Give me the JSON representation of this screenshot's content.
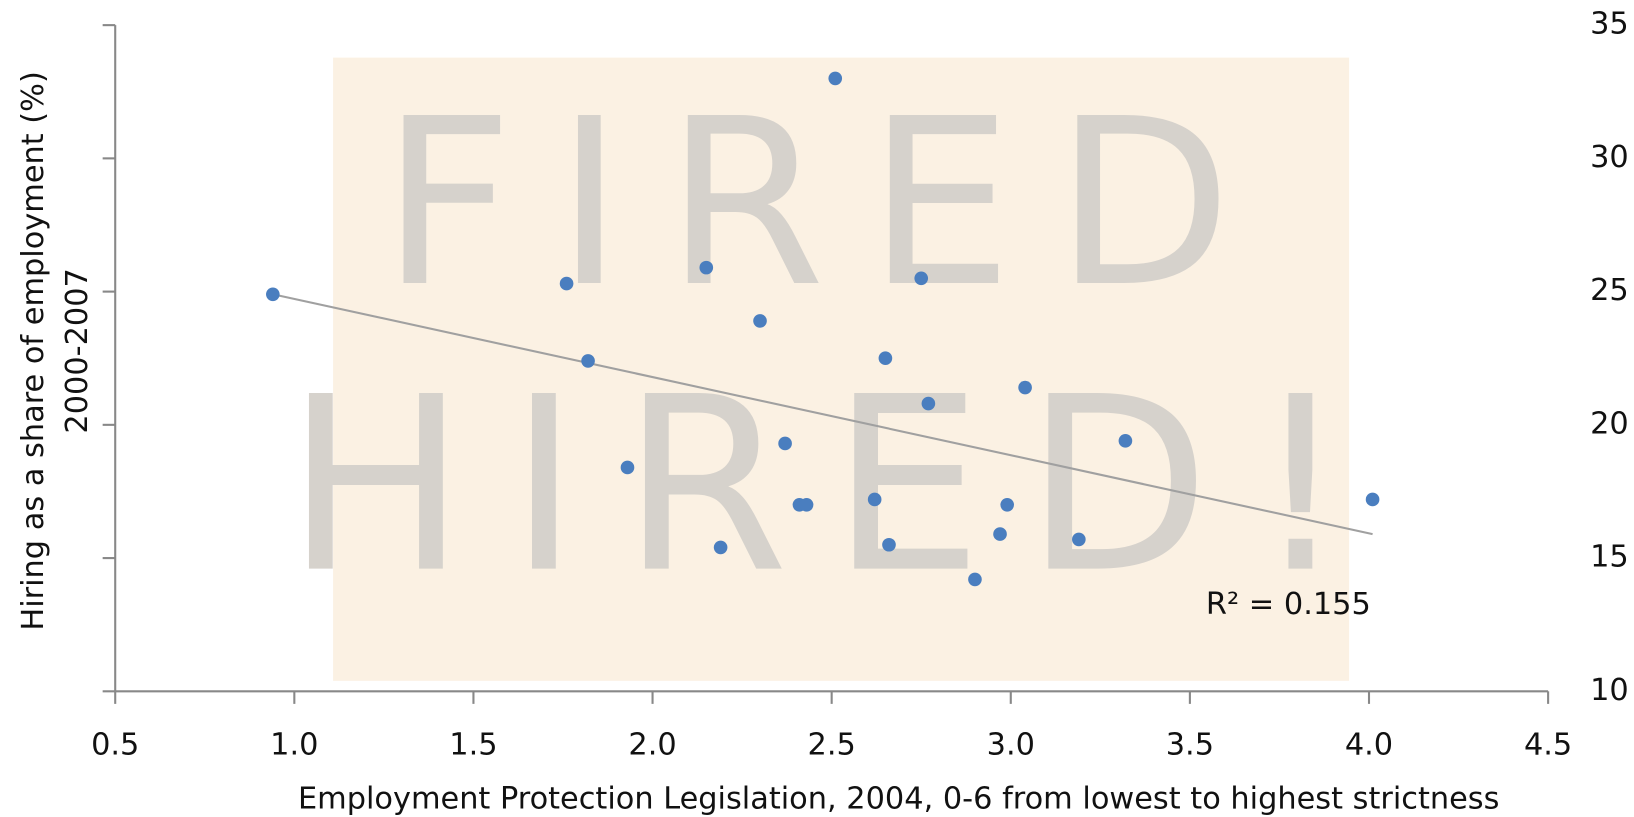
{
  "chart_data": {
    "type": "scatter",
    "x_label": "Employment Protection Legislation, 2004,  0-6 from lowest to highest strictness",
    "y_label": [
      "Hiring as a share of employment (%)",
      "2000-2007"
    ],
    "background_text": [
      "FIRED",
      "HIRED!"
    ],
    "xlim": [
      0.5,
      4.5
    ],
    "xticks": [
      0.5,
      {
        "value": 1,
        "label": "1.0"
      },
      1.5,
      {
        "value": 2,
        "label": "2.0"
      },
      2.5,
      {
        "value": 3,
        "label": "3.0"
      },
      3.5,
      {
        "value": 4,
        "label": "4.0"
      },
      4.5
    ],
    "ylim": [
      10,
      35
    ],
    "yticks": [
      10,
      15,
      20,
      25,
      30,
      35
    ],
    "series": [
      {
        "color": "#4a7ebf",
        "x": [
          0.94,
          1.76,
          1.82,
          1.93,
          2.15,
          2.19,
          2.3,
          2.37,
          2.41,
          2.43,
          2.51,
          2.62,
          2.65,
          2.66,
          2.75,
          2.77,
          2.9,
          2.97,
          2.99,
          3.04,
          3.19,
          3.32,
          4.01
        ],
        "values": [
          24.9,
          25.3,
          22.4,
          18.4,
          25.9,
          15.4,
          23.9,
          19.3,
          17.0,
          17.0,
          33.0,
          17.2,
          22.5,
          15.5,
          25.5,
          20.8,
          14.2,
          15.9,
          17.0,
          21.4,
          15.7,
          19.4,
          17.2
        ]
      }
    ],
    "trendline": {
      "color": "#a0a0a0",
      "x": [
        0.94,
        4.01
      ],
      "values": [
        24.9,
        15.9
      ]
    },
    "annotation": "R² = 0.155"
  }
}
